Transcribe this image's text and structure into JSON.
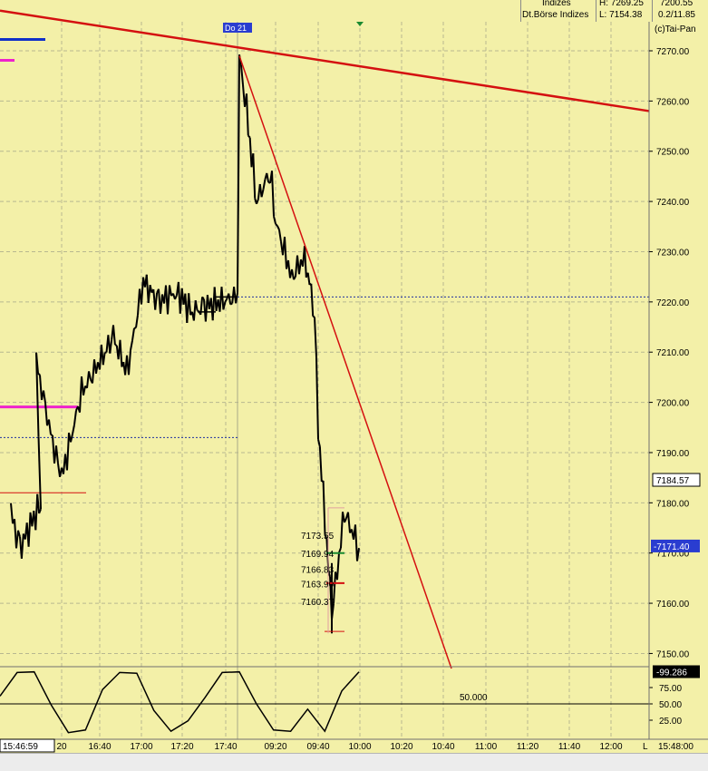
{
  "header": {
    "left_top": "Indizes",
    "left_bottom": "Dt.Börse Indizes",
    "high": "H: 7269.25",
    "low": "L: 7154.38",
    "top_right": "7200.55",
    "change": "0.2/11.85",
    "copyright": "(c)Tai-Pan"
  },
  "badges": {
    "day_marker": "Do 21",
    "clock": "15:46:59",
    "end_time": "15:48:00",
    "axis_end": "L"
  },
  "colors": {
    "background": "#f3f0a8",
    "grid": "#b8b890",
    "candles": "#000000",
    "trendline": "#d41010",
    "highlight_magenta": "#ee22cc",
    "highlight_blue": "#1030c8",
    "price_box_blue": "#2a3dd0"
  },
  "price_axis": {
    "ticks": [
      "7270.00",
      "7260.00",
      "7250.00",
      "7240.00",
      "7230.00",
      "7220.00",
      "7210.00",
      "7200.00",
      "7190.00",
      "7180.00",
      "7170.00",
      "7160.00",
      "7150.00"
    ],
    "current_label": "7184.57",
    "last_label": "7171.40"
  },
  "oscillator": {
    "ticks": [
      "75.00",
      "50.00",
      "25.00"
    ],
    "current_label": "99.286",
    "level_label": "50.000"
  },
  "time_axis": {
    "ticks": [
      "20",
      "16:40",
      "17:00",
      "17:20",
      "17:40",
      "09:20",
      "09:40",
      "10:00",
      "10:20",
      "10:40",
      "11:00",
      "11:20",
      "11:40",
      "12:00"
    ]
  },
  "annotations": [
    "7173.55",
    "7169.94",
    "7166.83",
    "7163.90",
    "7160.37"
  ],
  "chart_data": {
    "type": "candlestick",
    "ylim": [
      7145,
      7275
    ],
    "x_categories": [
      "20",
      "16:40",
      "17:00",
      "17:20",
      "17:40",
      "09:20",
      "09:40",
      "10:00",
      "10:20",
      "10:40",
      "11:00",
      "11:20",
      "11:40",
      "12:00"
    ],
    "price_path": [
      {
        "t": "16:20",
        "price": 7178
      },
      {
        "t": "16:25",
        "price": 7171
      },
      {
        "t": "16:30",
        "price": 7180
      },
      {
        "t": "16:33",
        "price": 7208
      },
      {
        "t": "16:36",
        "price": 7192
      },
      {
        "t": "16:40",
        "price": 7185
      },
      {
        "t": "16:45",
        "price": 7202
      },
      {
        "t": "16:50",
        "price": 7208
      },
      {
        "t": "16:55",
        "price": 7213
      },
      {
        "t": "17:00",
        "price": 7206
      },
      {
        "t": "17:05",
        "price": 7224
      },
      {
        "t": "17:10",
        "price": 7220
      },
      {
        "t": "17:15",
        "price": 7222
      },
      {
        "t": "17:20",
        "price": 7218
      },
      {
        "t": "17:25",
        "price": 7219
      },
      {
        "t": "17:40",
        "price": 7221
      },
      {
        "t": "09:00",
        "price": 7269
      },
      {
        "t": "09:05",
        "price": 7258
      },
      {
        "t": "09:10",
        "price": 7240
      },
      {
        "t": "09:15",
        "price": 7246
      },
      {
        "t": "09:20",
        "price": 7236
      },
      {
        "t": "09:25",
        "price": 7225
      },
      {
        "t": "09:30",
        "price": 7229
      },
      {
        "t": "09:35",
        "price": 7218
      },
      {
        "t": "09:40",
        "price": 7195
      },
      {
        "t": "09:45",
        "price": 7158
      },
      {
        "t": "09:50",
        "price": 7178
      },
      {
        "t": "09:55",
        "price": 7171
      }
    ],
    "trendlines": [
      {
        "from": {
          "t": "start",
          "price": 7278
        },
        "to": {
          "t": "12:10",
          "price": 7258
        }
      },
      {
        "from": {
          "t": "09:00",
          "price": 7269
        },
        "to": {
          "t": "10:45",
          "price": 7147
        }
      }
    ],
    "reference_levels": [
      7221,
      7193
    ],
    "oscillator_series": {
      "level": 50,
      "path": [
        62,
        98,
        99,
        48,
        6,
        10,
        72,
        98,
        97,
        40,
        8,
        24,
        60,
        98,
        99,
        50,
        10,
        8,
        42,
        8,
        70,
        99
      ]
    }
  }
}
